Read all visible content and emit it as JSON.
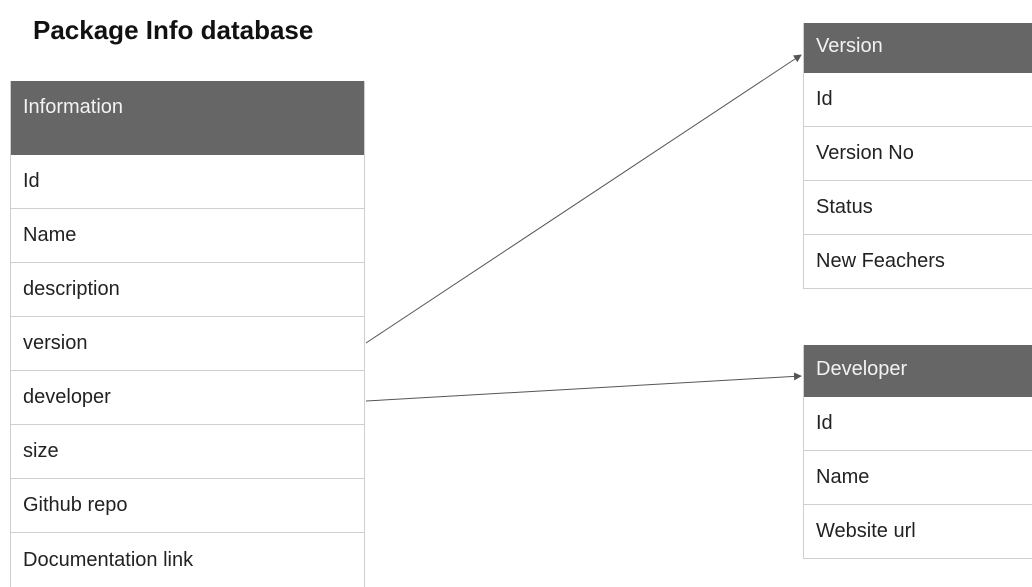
{
  "title": "Package Info database",
  "tables": {
    "information": {
      "header": "Information",
      "fields": [
        "Id",
        "Name",
        "description",
        "version",
        "developer",
        "size",
        "Github repo",
        "Documentation link"
      ]
    },
    "version": {
      "header": "Version",
      "fields": [
        "Id",
        "Version No",
        "Status",
        "New Feachers"
      ]
    },
    "developer": {
      "header": "Developer",
      "fields": [
        "Id",
        "Name",
        "Website url"
      ]
    }
  },
  "colors": {
    "header_bg": "#666666",
    "header_text": "#f2f2f2",
    "border": "#cfcfcf",
    "arrow": "#555555"
  }
}
